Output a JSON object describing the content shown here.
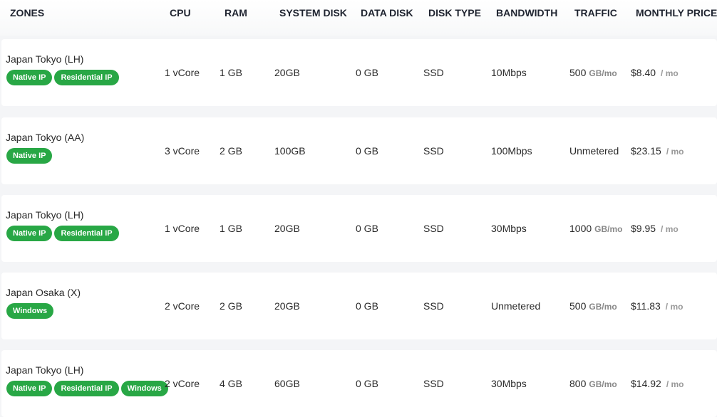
{
  "headers": [
    "ZONES",
    "CPU",
    "RAM",
    "SYSTEM DISK",
    "DATA DISK",
    "DISK TYPE",
    "BANDWIDTH",
    "TRAFFIC",
    "MONTHLY PRICE"
  ],
  "badge_color": "#28a745",
  "rows": [
    {
      "zone": "Japan Tokyo (LH)",
      "badges": [
        "Native IP",
        "Residential IP"
      ],
      "cpu": "1 vCore",
      "ram": "1 GB",
      "system_disk": "20GB",
      "data_disk": "0 GB",
      "disk_type": "SSD",
      "bandwidth": "10Mbps",
      "traffic": "500",
      "traffic_unit": "GB/mo",
      "price": "$8.40",
      "price_unit": "/ mo"
    },
    {
      "zone": "Japan Tokyo (AA)",
      "badges": [
        "Native IP"
      ],
      "cpu": "3 vCore",
      "ram": "2 GB",
      "system_disk": "100GB",
      "data_disk": "0 GB",
      "disk_type": "SSD",
      "bandwidth": "100Mbps",
      "traffic": "Unmetered",
      "traffic_unit": "",
      "price": "$23.15",
      "price_unit": "/ mo"
    },
    {
      "zone": "Japan Tokyo (LH)",
      "badges": [
        "Native IP",
        "Residential IP"
      ],
      "cpu": "1 vCore",
      "ram": "1 GB",
      "system_disk": "20GB",
      "data_disk": "0 GB",
      "disk_type": "SSD",
      "bandwidth": "30Mbps",
      "traffic": "1000",
      "traffic_unit": "GB/mo",
      "price": "$9.95",
      "price_unit": "/ mo"
    },
    {
      "zone": "Japan Osaka (X)",
      "badges": [
        "Windows"
      ],
      "cpu": "2 vCore",
      "ram": "2 GB",
      "system_disk": "20GB",
      "data_disk": "0 GB",
      "disk_type": "SSD",
      "bandwidth": "Unmetered",
      "traffic": "500",
      "traffic_unit": "GB/mo",
      "price": "$11.83",
      "price_unit": "/ mo"
    },
    {
      "zone": "Japan Tokyo (LH)",
      "badges": [
        "Native IP",
        "Residential IP",
        "Windows"
      ],
      "cpu": "2 vCore",
      "ram": "4 GB",
      "system_disk": "60GB",
      "data_disk": "0 GB",
      "disk_type": "SSD",
      "bandwidth": "30Mbps",
      "traffic": "800",
      "traffic_unit": "GB/mo",
      "price": "$14.92",
      "price_unit": "/ mo"
    }
  ]
}
